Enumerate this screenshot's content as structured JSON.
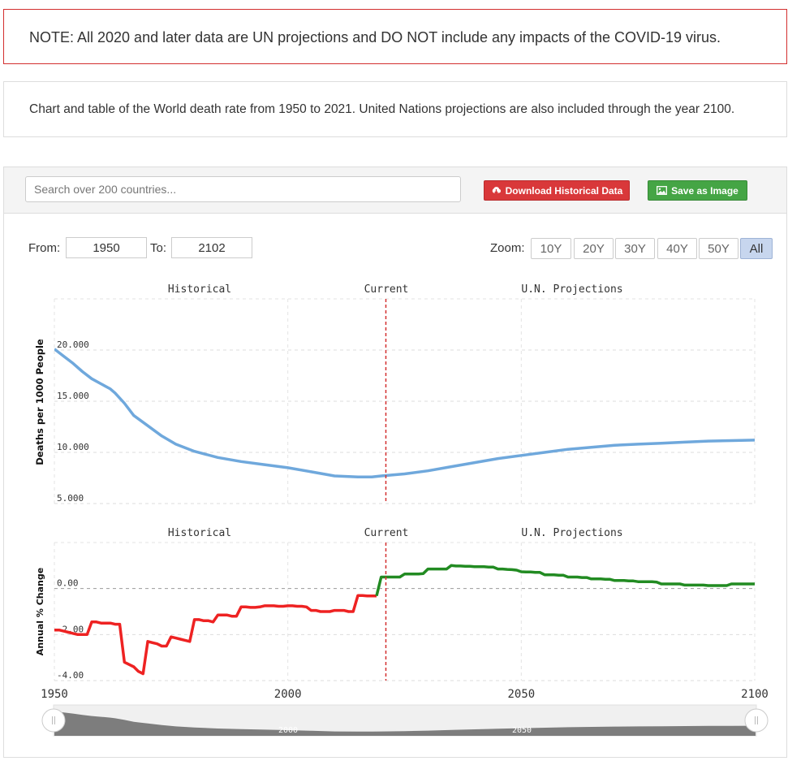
{
  "note": "NOTE: All 2020 and later data are UN projections and DO NOT include any impacts of the COVID-19 virus.",
  "description": "Chart and table of the World death rate from 1950 to 2021. United Nations projections are also included through the year 2100.",
  "toolbar": {
    "search_placeholder": "Search over 200 countries...",
    "download_label": "Download Historical Data",
    "save_label": "Save as Image",
    "download_icon": "cloud-download-icon",
    "save_icon": "image-icon",
    "download_color": "#d9383a",
    "save_color": "#45a545"
  },
  "range": {
    "from_label": "From:",
    "from_value": "1950",
    "to_label": "To:",
    "to_value": "2102",
    "zoom_label": "Zoom:",
    "zoom_options": [
      "10Y",
      "20Y",
      "30Y",
      "40Y",
      "50Y",
      "All"
    ],
    "zoom_selected": "All"
  },
  "chart_data": [
    {
      "type": "line",
      "ylabel": "Deaths per 1000 People",
      "bands": [
        "Historical",
        "Current",
        "U.N. Projections"
      ],
      "xlim": [
        1950,
        2100
      ],
      "ylim": [
        5,
        25
      ],
      "yticks": [
        "5.000",
        "10.000",
        "15.000",
        "20.000"
      ],
      "ytick_values": [
        5,
        10,
        15,
        20
      ],
      "current_year": 2021,
      "color": "#6fa8dc",
      "x": [
        1950,
        1952,
        1954,
        1956,
        1958,
        1960,
        1962,
        1963,
        1965,
        1967,
        1970,
        1973,
        1976,
        1980,
        1985,
        1990,
        1995,
        2000,
        2005,
        2010,
        2015,
        2018,
        2020,
        2025,
        2030,
        2035,
        2040,
        2045,
        2050,
        2055,
        2060,
        2065,
        2070,
        2075,
        2080,
        2085,
        2090,
        2095,
        2100
      ],
      "values": [
        20.1,
        19.4,
        18.7,
        17.9,
        17.2,
        16.7,
        16.2,
        15.8,
        14.8,
        13.6,
        12.6,
        11.6,
        10.8,
        10.1,
        9.5,
        9.1,
        8.8,
        8.5,
        8.1,
        7.7,
        7.6,
        7.6,
        7.7,
        7.9,
        8.2,
        8.6,
        9.0,
        9.4,
        9.7,
        10.0,
        10.3,
        10.5,
        10.7,
        10.8,
        10.9,
        11.0,
        11.1,
        11.15,
        11.2
      ]
    },
    {
      "type": "line",
      "ylabel": "Annual % Change",
      "bands": [
        "Historical",
        "Current",
        "U.N. Projections"
      ],
      "xlim": [
        1950,
        2100
      ],
      "ylim": [
        -4,
        2
      ],
      "yticks": [
        "-4.00",
        "-2.00",
        "0.00"
      ],
      "ytick_values": [
        -4,
        -2,
        0
      ],
      "negative_color": "#ee2222",
      "positive_color": "#228b22",
      "x": [
        1950,
        1951,
        1952,
        1953,
        1954,
        1955,
        1956,
        1957,
        1958,
        1959,
        1960,
        1961,
        1962,
        1963,
        1964,
        1965,
        1966,
        1967,
        1968,
        1969,
        1970,
        1971,
        1972,
        1973,
        1974,
        1975,
        1976,
        1977,
        1978,
        1979,
        1980,
        1981,
        1982,
        1983,
        1984,
        1985,
        1986,
        1987,
        1988,
        1989,
        1990,
        1991,
        1992,
        1993,
        1994,
        1995,
        1996,
        1997,
        1998,
        1999,
        2000,
        2001,
        2002,
        2003,
        2004,
        2005,
        2006,
        2007,
        2008,
        2009,
        2010,
        2011,
        2012,
        2013,
        2014,
        2015,
        2016,
        2017,
        2018,
        2019,
        2020,
        2021,
        2022,
        2023,
        2024,
        2025,
        2026,
        2027,
        2028,
        2029,
        2030,
        2031,
        2032,
        2033,
        2034,
        2035,
        2036,
        2037,
        2038,
        2039,
        2040,
        2041,
        2042,
        2043,
        2044,
        2045,
        2046,
        2047,
        2048,
        2049,
        2050,
        2051,
        2052,
        2053,
        2054,
        2055,
        2056,
        2057,
        2058,
        2059,
        2060,
        2061,
        2062,
        2063,
        2064,
        2065,
        2066,
        2067,
        2068,
        2069,
        2070,
        2071,
        2072,
        2073,
        2074,
        2075,
        2076,
        2077,
        2078,
        2079,
        2080,
        2081,
        2082,
        2083,
        2084,
        2085,
        2086,
        2087,
        2088,
        2089,
        2090,
        2091,
        2092,
        2093,
        2094,
        2095,
        2096,
        2097,
        2098,
        2099,
        2100
      ],
      "values": [
        -1.8,
        -1.8,
        -1.85,
        -1.9,
        -1.95,
        -2.0,
        -2.0,
        -2.0,
        -1.45,
        -1.45,
        -1.5,
        -1.5,
        -1.5,
        -1.55,
        -1.55,
        -3.2,
        -3.3,
        -3.4,
        -3.6,
        -3.7,
        -2.3,
        -2.35,
        -2.4,
        -2.5,
        -2.5,
        -2.1,
        -2.15,
        -2.2,
        -2.25,
        -2.3,
        -1.35,
        -1.35,
        -1.4,
        -1.4,
        -1.45,
        -1.15,
        -1.15,
        -1.15,
        -1.2,
        -1.2,
        -0.8,
        -0.8,
        -0.82,
        -0.82,
        -0.8,
        -0.75,
        -0.75,
        -0.75,
        -0.77,
        -0.77,
        -0.75,
        -0.75,
        -0.77,
        -0.77,
        -0.8,
        -0.95,
        -0.95,
        -1.0,
        -1.0,
        -1.0,
        -0.95,
        -0.95,
        -0.95,
        -1.0,
        -1.0,
        -0.3,
        -0.3,
        -0.32,
        -0.32,
        -0.32,
        0.5,
        0.5,
        0.5,
        0.5,
        0.5,
        0.63,
        0.63,
        0.63,
        0.63,
        0.65,
        0.85,
        0.85,
        0.85,
        0.85,
        0.85,
        1.0,
        0.98,
        0.98,
        0.97,
        0.97,
        0.95,
        0.95,
        0.95,
        0.93,
        0.93,
        0.85,
        0.85,
        0.83,
        0.82,
        0.8,
        0.73,
        0.72,
        0.72,
        0.7,
        0.7,
        0.6,
        0.6,
        0.6,
        0.58,
        0.58,
        0.5,
        0.5,
        0.5,
        0.48,
        0.48,
        0.42,
        0.42,
        0.42,
        0.4,
        0.4,
        0.35,
        0.35,
        0.35,
        0.33,
        0.33,
        0.3,
        0.3,
        0.3,
        0.3,
        0.28,
        0.2,
        0.2,
        0.2,
        0.2,
        0.2,
        0.15,
        0.15,
        0.15,
        0.15,
        0.15,
        0.13,
        0.13,
        0.13,
        0.13,
        0.13,
        0.2,
        0.2,
        0.2,
        0.2,
        0.2,
        0.2
      ]
    }
  ],
  "xaxis": {
    "ticks": [
      "1950",
      "2000",
      "2050",
      "2100"
    ],
    "tick_values": [
      1950,
      2000,
      2050,
      2100
    ]
  },
  "navigator": {
    "labels": [
      "2000",
      "2050"
    ],
    "label_values": [
      2000,
      2050
    ],
    "handle_left_icon": "grip-icon",
    "handle_right_icon": "grip-icon"
  }
}
